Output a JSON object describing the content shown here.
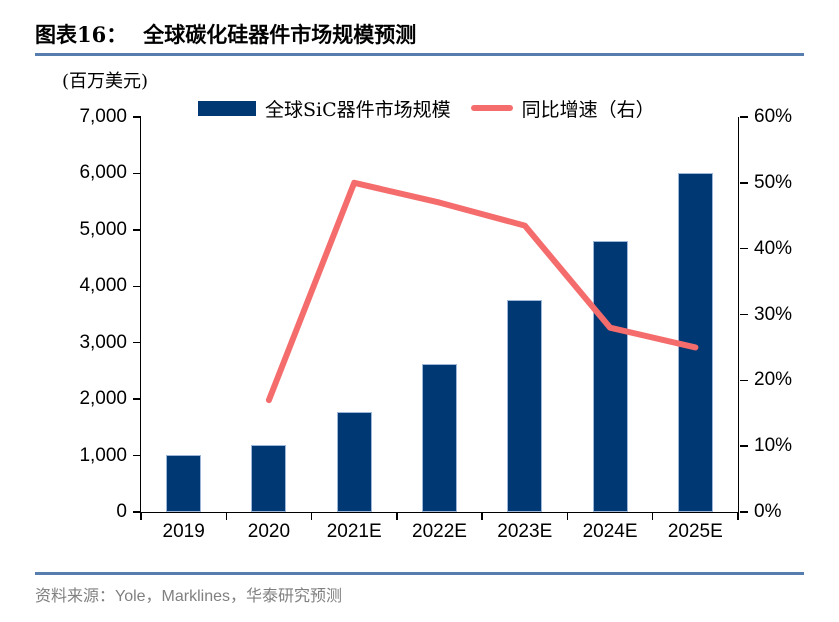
{
  "header": {
    "figure_label": "图表16：",
    "title": "全球碳化硅器件市场规模预测"
  },
  "unit_label": "(百万美元)",
  "legend": [
    {
      "label": "全球SiC器件市场规模",
      "swatch": "bar-swatch",
      "color": "#003874"
    },
    {
      "label": "同比增速（右）",
      "swatch": "line-swatch",
      "color": "#F56C6C"
    }
  ],
  "chart_data": {
    "type": "bar+line combo",
    "title": "全球碳化硅器件市场规模预测",
    "categories": [
      "2019",
      "2020",
      "2021E",
      "2022E",
      "2023E",
      "2024E",
      "2025E"
    ],
    "series": [
      {
        "name": "全球SiC器件市场规模",
        "type": "bar",
        "axis": "left",
        "unit": "百万美元",
        "values": [
          1010,
          1185,
          1780,
          2615,
          3750,
          4800,
          6000
        ]
      },
      {
        "name": "同比增速（右）",
        "type": "line",
        "axis": "right",
        "unit": "%",
        "values": [
          null,
          17,
          50,
          47,
          43.5,
          28,
          25
        ]
      }
    ],
    "left_axis": {
      "min": 0,
      "max": 7000,
      "ticks": [
        "7,000",
        "6,000",
        "5,000",
        "4,000",
        "3,000",
        "2,000",
        "1,000",
        "0"
      ]
    },
    "right_axis": {
      "min": 0,
      "max": 60,
      "ticks": [
        "60%",
        "50%",
        "40%",
        "30%",
        "20%",
        "10%",
        "0%"
      ]
    },
    "grid": false,
    "legend_position": "top"
  },
  "source": "资料来源：Yole，Marklines，华泰研究预测",
  "colors": {
    "bar-fill": "#003874",
    "bar-border": "#9DB7DA",
    "line": "#F56C6C",
    "rule": "#567DAE",
    "source-text": "#808080",
    "axis": "#000000"
  }
}
